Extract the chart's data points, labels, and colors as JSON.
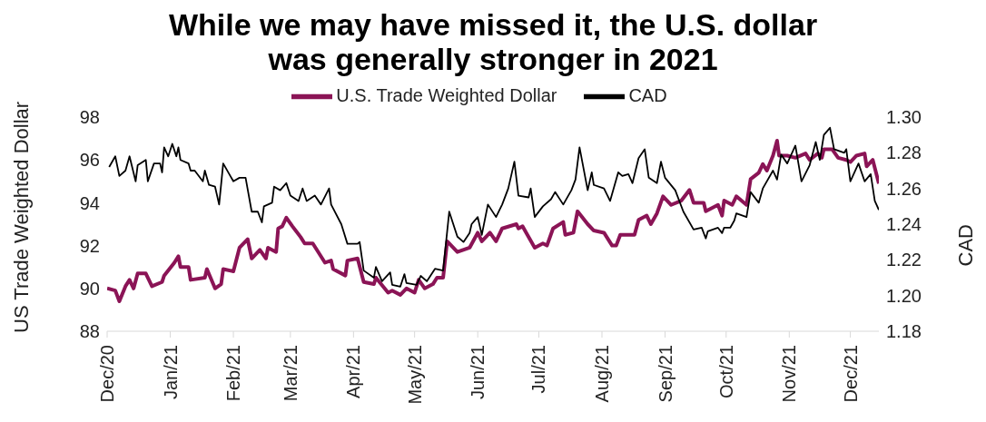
{
  "chart_data": {
    "type": "line",
    "title": "While we may have missed it, the U.S. dollar was generally stronger in 2021",
    "ylabel": "US Trade Weighted Dollar",
    "y2label": "CAD",
    "xlim": [
      "2020-12-01",
      "2021-12-15"
    ],
    "xticks": [
      {
        "value": "2020-12-01",
        "label": "Dec/20"
      },
      {
        "value": "2021-01-01",
        "label": "Jan/21"
      },
      {
        "value": "2021-02-01",
        "label": "Feb/21"
      },
      {
        "value": "2021-03-01",
        "label": "Mar/21"
      },
      {
        "value": "2021-04-01",
        "label": "Apr/21"
      },
      {
        "value": "2021-05-01",
        "label": "May/21"
      },
      {
        "value": "2021-06-01",
        "label": "Jun/21"
      },
      {
        "value": "2021-07-01",
        "label": "Jul/21"
      },
      {
        "value": "2021-08-01",
        "label": "Aug/21"
      },
      {
        "value": "2021-09-01",
        "label": "Sep/21"
      },
      {
        "value": "2021-10-01",
        "label": "Oct/21"
      },
      {
        "value": "2021-11-01",
        "label": "Nov/21"
      },
      {
        "value": "2021-12-01",
        "label": "Dec/21"
      }
    ],
    "ylim": [
      88,
      98
    ],
    "yticks": [
      88,
      90,
      92,
      94,
      96,
      98
    ],
    "y2lim": [
      1.18,
      1.3
    ],
    "y2ticks": [
      1.18,
      {
        "value": 1.2,
        "label": "1.20"
      },
      1.22,
      1.24,
      1.26,
      1.28,
      {
        "value": 1.3,
        "label": "1.30"
      }
    ],
    "legend": "top",
    "series": [
      {
        "name": "U.S. Trade Weighted Dollar",
        "color": "#8b1456",
        "x": [
          "2020-12-01",
          "2020-12-05",
          "2020-12-07",
          "2020-12-10",
          "2020-12-12",
          "2020-12-14",
          "2020-12-16",
          "2020-12-20",
          "2020-12-23",
          "2020-12-28",
          "2020-12-29",
          "2021-01-03",
          "2021-01-05",
          "2021-01-06",
          "2021-01-10",
          "2021-01-11",
          "2021-01-18",
          "2021-01-19",
          "2021-01-23",
          "2021-01-26",
          "2021-01-27",
          "2021-02-01",
          "2021-02-04",
          "2021-02-08",
          "2021-02-10",
          "2021-02-14",
          "2021-02-17",
          "2021-02-18",
          "2021-02-22",
          "2021-02-23",
          "2021-02-25",
          "2021-02-27",
          "2021-03-02",
          "2021-03-06",
          "2021-03-08",
          "2021-03-12",
          "2021-03-18",
          "2021-03-21",
          "2021-03-22",
          "2021-03-28",
          "2021-03-29",
          "2021-04-03",
          "2021-04-06",
          "2021-04-11",
          "2021-04-12",
          "2021-04-18",
          "2021-04-20",
          "2021-04-24",
          "2021-04-27",
          "2021-05-01",
          "2021-05-03",
          "2021-05-06",
          "2021-05-10",
          "2021-05-12",
          "2021-05-15",
          "2021-05-17",
          "2021-05-22",
          "2021-05-28",
          "2021-06-01",
          "2021-06-03",
          "2021-06-07",
          "2021-06-10",
          "2021-06-13",
          "2021-06-20",
          "2021-06-21",
          "2021-06-23",
          "2021-06-29",
          "2021-07-03",
          "2021-07-05",
          "2021-07-08",
          "2021-07-13",
          "2021-07-14",
          "2021-07-18",
          "2021-07-20",
          "2021-07-25",
          "2021-07-28",
          "2021-08-02",
          "2021-08-06",
          "2021-08-08",
          "2021-08-10",
          "2021-08-17",
          "2021-08-19",
          "2021-08-23",
          "2021-08-25",
          "2021-08-28",
          "2021-08-31",
          "2021-09-04",
          "2021-09-09",
          "2021-09-13",
          "2021-09-15",
          "2021-09-20",
          "2021-09-21",
          "2021-09-27",
          "2021-09-29",
          "2021-09-30",
          "2021-10-04",
          "2021-10-06",
          "2021-10-11",
          "2021-10-13",
          "2021-10-17",
          "2021-10-19",
          "2021-10-21",
          "2021-10-24",
          "2021-10-26",
          "2021-10-27",
          "2021-10-31",
          "2021-11-04",
          "2021-11-09",
          "2021-11-11",
          "2021-11-15",
          "2021-11-17",
          "2021-11-18",
          "2021-11-22",
          "2021-11-25",
          "2021-11-29",
          "2021-12-01",
          "2021-12-04",
          "2021-12-08",
          "2021-12-09",
          "2021-12-12",
          "2021-12-15"
        ],
        "values": [
          90.0,
          89.9,
          89.4,
          90.1,
          90.4,
          90.0,
          90.7,
          90.7,
          90.1,
          90.3,
          90.6,
          91.2,
          91.5,
          91.0,
          91.0,
          90.4,
          90.5,
          90.9,
          90.0,
          90.2,
          90.9,
          90.8,
          91.9,
          92.3,
          91.4,
          91.8,
          91.4,
          91.9,
          91.7,
          92.8,
          92.9,
          93.3,
          92.9,
          92.4,
          92.1,
          92.1,
          91.2,
          91.3,
          90.9,
          90.6,
          91.3,
          91.4,
          90.3,
          90.2,
          90.5,
          89.8,
          89.9,
          89.7,
          90.0,
          89.8,
          90.4,
          90.0,
          90.2,
          90.5,
          90.5,
          92.2,
          91.7,
          91.9,
          92.6,
          92.2,
          92.6,
          92.2,
          92.8,
          93.0,
          92.8,
          92.9,
          91.9,
          92.1,
          92.0,
          92.8,
          93.1,
          92.5,
          92.6,
          93.6,
          93.0,
          92.7,
          92.6,
          92.0,
          92.0,
          92.5,
          92.5,
          93.2,
          93.4,
          93.0,
          93.5,
          94.3,
          93.9,
          94.1,
          94.6,
          94.0,
          94.0,
          93.6,
          93.9,
          93.4,
          94.1,
          93.9,
          94.3,
          93.9,
          95.1,
          95.4,
          95.8,
          95.5,
          96.2,
          96.9,
          96.2,
          96.2,
          96.1,
          96.3,
          96.0,
          96.3,
          96.1,
          96.5,
          96.5,
          96.1,
          96.0,
          95.9,
          96.2,
          96.3,
          95.7,
          96.0,
          94.9
        ]
      },
      {
        "name": "CAD",
        "color": "#000000",
        "axis": "y2",
        "x": [
          "2020-12-02",
          "2020-12-05",
          "2020-12-07",
          "2020-12-10",
          "2020-12-12",
          "2020-12-15",
          "2020-12-16",
          "2020-12-20",
          "2020-12-21",
          "2020-12-24",
          "2020-12-27",
          "2020-12-28",
          "2020-12-29",
          "2020-12-31",
          "2021-01-02",
          "2021-01-04",
          "2021-01-05",
          "2021-01-06",
          "2021-01-10",
          "2021-01-11",
          "2021-01-13",
          "2021-01-17",
          "2021-01-18",
          "2021-01-20",
          "2021-01-23",
          "2021-01-25",
          "2021-01-27",
          "2021-02-01",
          "2021-02-04",
          "2021-02-07",
          "2021-02-10",
          "2021-02-13",
          "2021-02-15",
          "2021-02-16",
          "2021-02-20",
          "2021-02-21",
          "2021-02-24",
          "2021-02-27",
          "2021-03-01",
          "2021-03-05",
          "2021-03-07",
          "2021-03-09",
          "2021-03-13",
          "2021-03-16",
          "2021-03-20",
          "2021-03-21",
          "2021-03-26",
          "2021-03-29",
          "2021-04-03",
          "2021-04-04",
          "2021-04-06",
          "2021-04-11",
          "2021-04-12",
          "2021-04-15",
          "2021-04-19",
          "2021-04-20",
          "2021-04-24",
          "2021-04-26",
          "2021-04-27",
          "2021-05-02",
          "2021-05-04",
          "2021-05-07",
          "2021-05-11",
          "2021-05-15",
          "2021-05-18",
          "2021-05-22",
          "2021-05-25",
          "2021-05-28",
          "2021-05-29",
          "2021-06-01",
          "2021-06-03",
          "2021-06-06",
          "2021-06-10",
          "2021-06-13",
          "2021-06-16",
          "2021-06-19",
          "2021-06-21",
          "2021-06-26",
          "2021-06-27",
          "2021-06-29",
          "2021-07-03",
          "2021-07-07",
          "2021-07-09",
          "2021-07-13",
          "2021-07-17",
          "2021-07-19",
          "2021-07-21",
          "2021-07-25",
          "2021-07-27",
          "2021-07-28",
          "2021-08-02",
          "2021-08-05",
          "2021-08-09",
          "2021-08-11",
          "2021-08-14",
          "2021-08-16",
          "2021-08-19",
          "2021-08-22",
          "2021-08-24",
          "2021-08-28",
          "2021-08-30",
          "2021-09-01",
          "2021-09-06",
          "2021-09-10",
          "2021-09-15",
          "2021-09-19",
          "2021-09-21",
          "2021-09-22",
          "2021-09-27",
          "2021-09-29",
          "2021-09-30",
          "2021-10-03",
          "2021-10-05",
          "2021-10-06",
          "2021-10-11",
          "2021-10-13",
          "2021-10-17",
          "2021-10-19",
          "2021-10-24",
          "2021-10-26",
          "2021-10-28",
          "2021-10-31",
          "2021-11-04",
          "2021-11-07",
          "2021-11-11",
          "2021-11-14",
          "2021-11-16",
          "2021-11-18",
          "2021-11-21",
          "2021-11-23",
          "2021-11-28",
          "2021-11-29",
          "2021-12-01",
          "2021-12-05",
          "2021-12-08",
          "2021-12-11",
          "2021-12-13",
          "2021-12-15"
        ],
        "values": [
          1.272,
          1.278,
          1.267,
          1.27,
          1.278,
          1.264,
          1.273,
          1.276,
          1.264,
          1.274,
          1.274,
          1.269,
          1.283,
          1.278,
          1.285,
          1.278,
          1.283,
          1.276,
          1.274,
          1.27,
          1.27,
          1.264,
          1.27,
          1.262,
          1.261,
          1.251,
          1.274,
          1.264,
          1.266,
          1.266,
          1.247,
          1.247,
          1.241,
          1.25,
          1.252,
          1.261,
          1.259,
          1.263,
          1.256,
          1.253,
          1.26,
          1.253,
          1.256,
          1.251,
          1.26,
          1.251,
          1.24,
          1.229,
          1.229,
          1.23,
          1.214,
          1.21,
          1.216,
          1.208,
          1.213,
          1.206,
          1.205,
          1.212,
          1.207,
          1.206,
          1.211,
          1.208,
          1.215,
          1.214,
          1.247,
          1.233,
          1.23,
          1.235,
          1.24,
          1.244,
          1.234,
          1.251,
          1.244,
          1.251,
          1.26,
          1.275,
          1.256,
          1.255,
          1.26,
          1.244,
          1.25,
          1.254,
          1.258,
          1.251,
          1.259,
          1.265,
          1.283,
          1.259,
          1.269,
          1.262,
          1.26,
          1.253,
          1.269,
          1.267,
          1.268,
          1.263,
          1.277,
          1.282,
          1.266,
          1.263,
          1.275,
          1.266,
          1.259,
          1.247,
          1.237,
          1.238,
          1.232,
          1.236,
          1.238,
          1.235,
          1.238,
          1.238,
          1.242,
          1.246,
          1.244,
          1.258,
          1.252,
          1.26,
          1.27,
          1.265,
          1.279,
          1.274,
          1.284,
          1.264,
          1.273,
          1.286,
          1.276,
          1.29,
          1.294,
          1.282,
          1.28,
          1.282,
          1.264,
          1.274,
          1.264,
          1.268,
          1.253,
          1.248
        ]
      }
    ]
  }
}
